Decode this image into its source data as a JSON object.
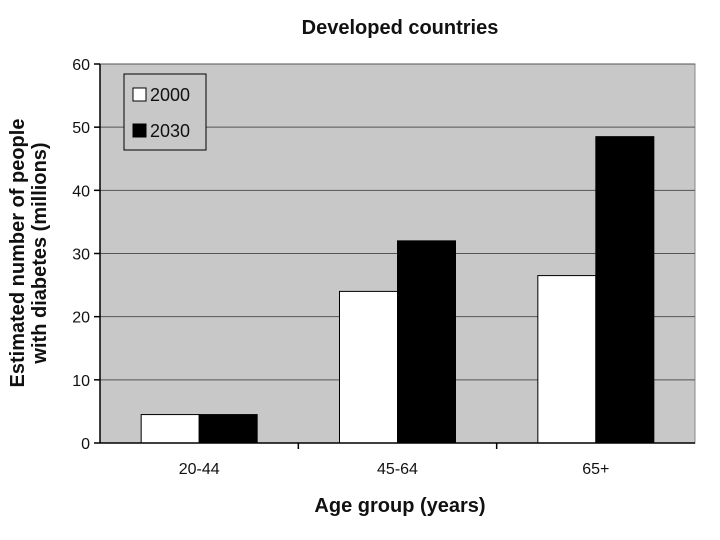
{
  "chart_data": {
    "type": "bar",
    "title": "Developed countries",
    "xlabel": "Age group (years)",
    "ylabel_lines": [
      "Estimated number of people",
      "with diabetes (millions)"
    ],
    "categories": [
      "20-44",
      "45-64",
      "65+"
    ],
    "series": [
      {
        "name": "2000",
        "values": [
          4.5,
          24,
          26.5
        ],
        "color": "#ffffff"
      },
      {
        "name": "2030",
        "values": [
          4.5,
          32,
          48.5
        ],
        "color": "#000000"
      }
    ],
    "ylim": [
      0,
      60
    ],
    "yticks": [
      0,
      10,
      20,
      30,
      40,
      50,
      60
    ],
    "grid": true,
    "legend_position": "top-left",
    "plot_background": "#c8c8c8"
  }
}
